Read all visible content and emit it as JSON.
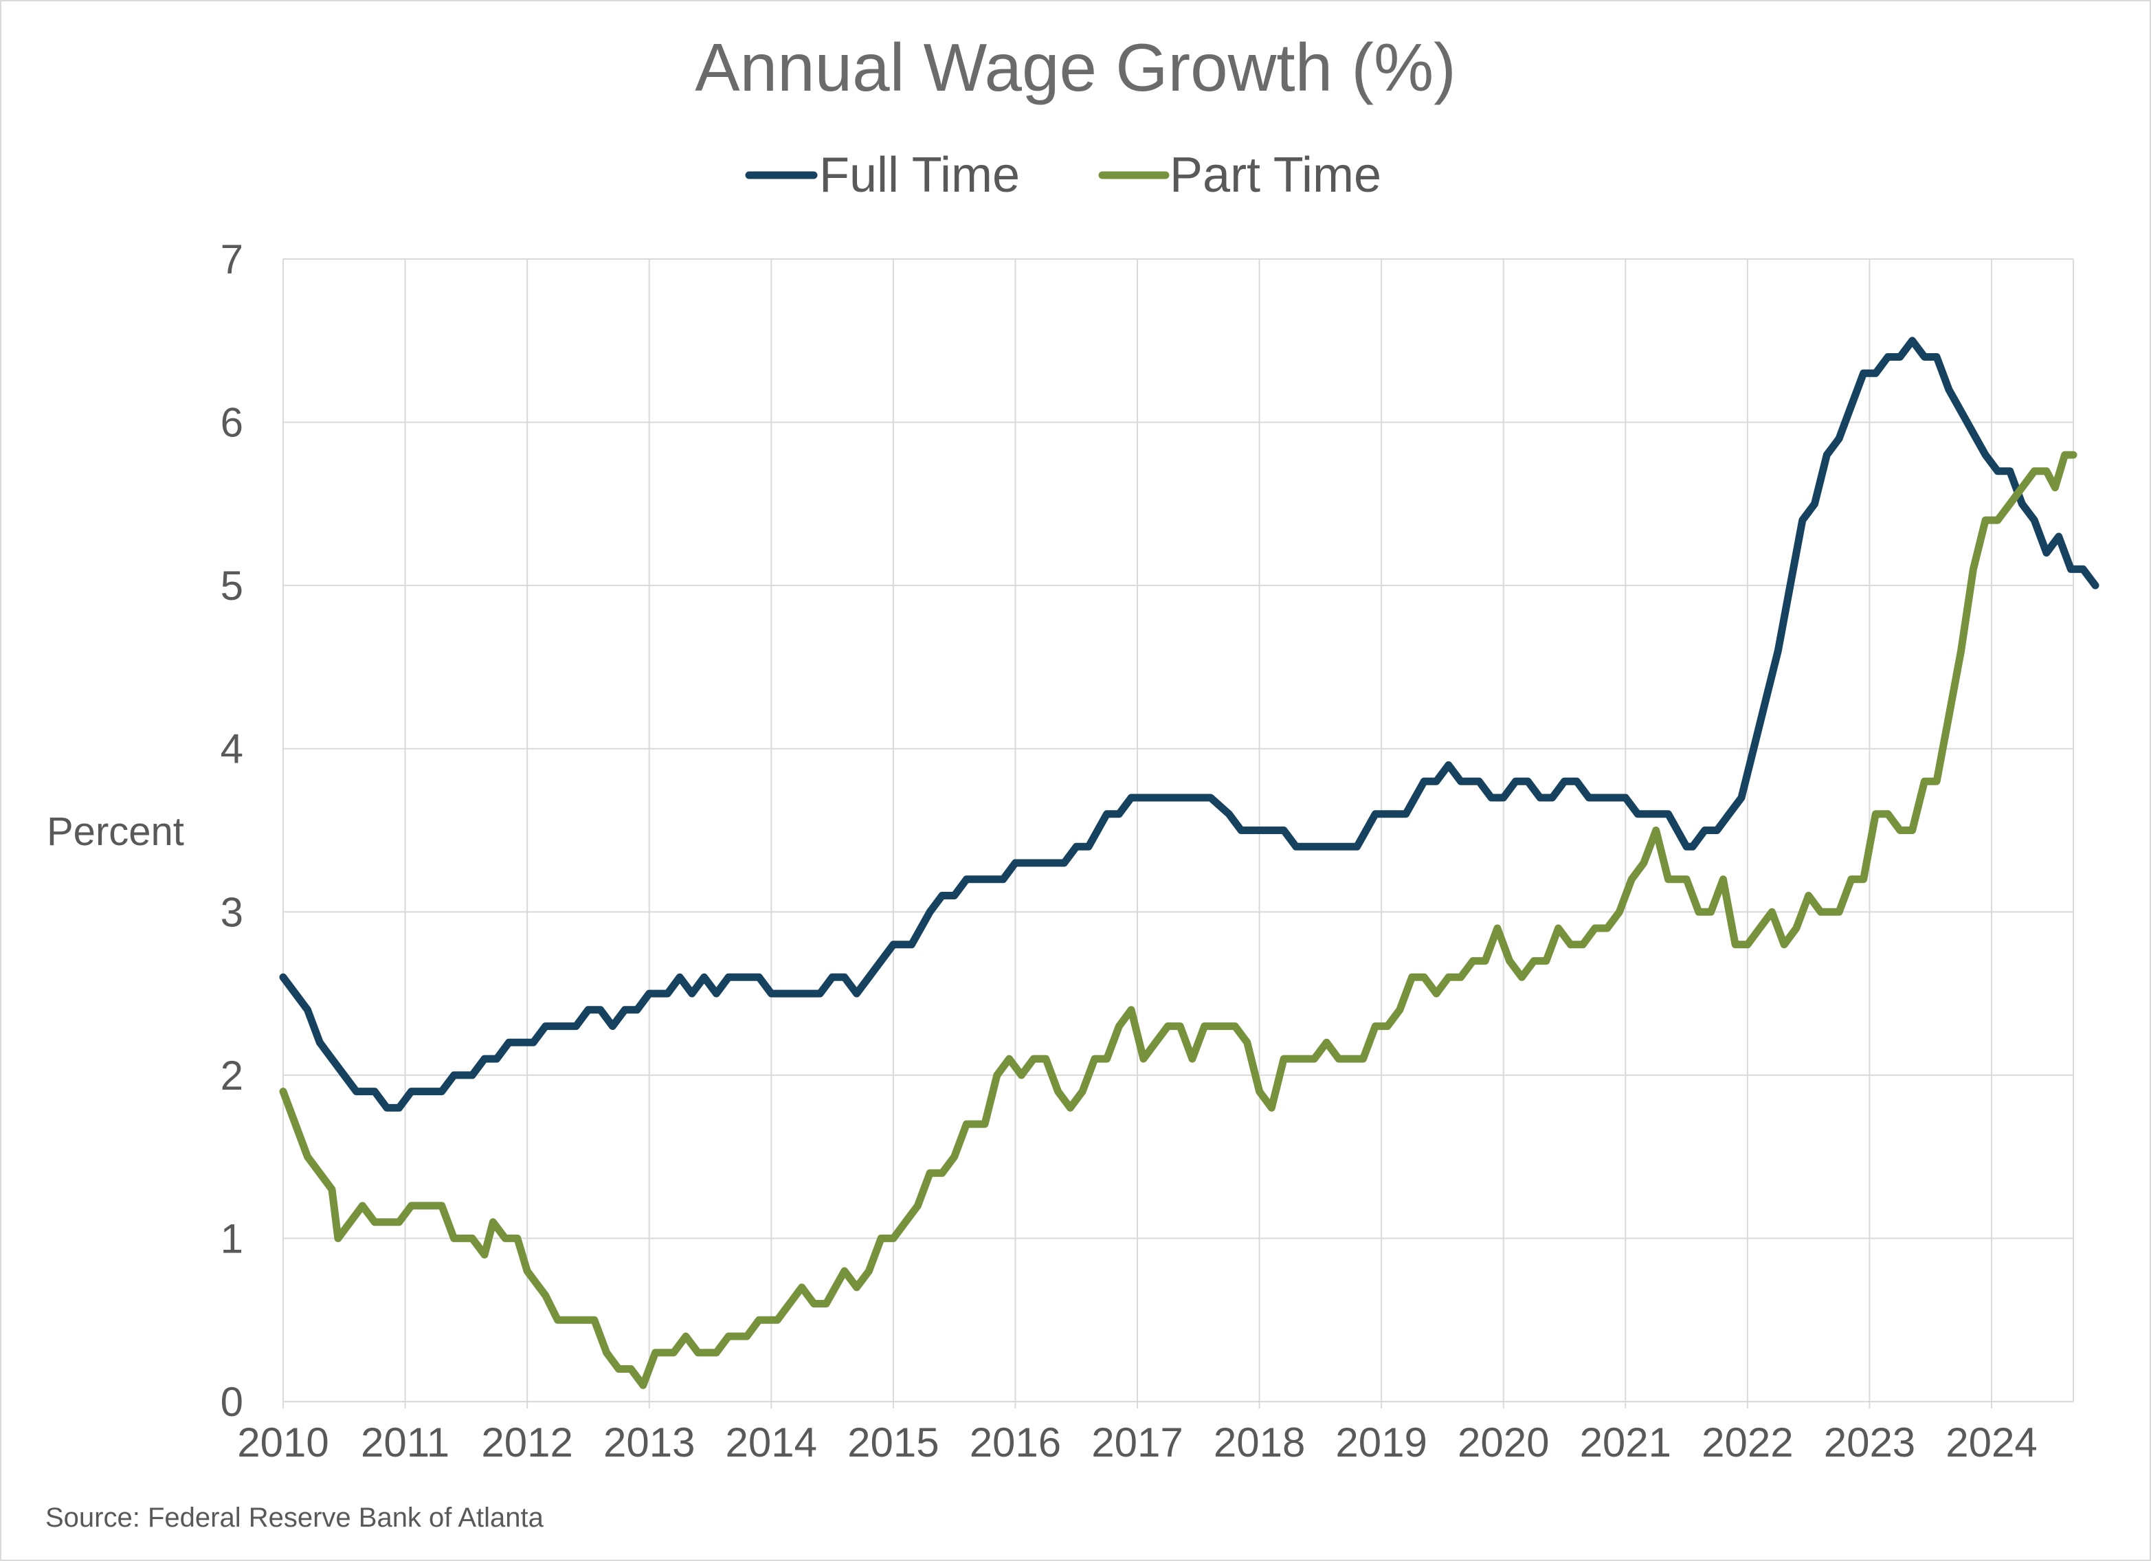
{
  "chart_data": {
    "type": "line",
    "title": "Annual Wage Growth (%)",
    "ylabel": "Percent",
    "xlabel": "",
    "source": "Source: Federal Reserve Bank of Atlanta",
    "xlim": [
      2010,
      2024.67
    ],
    "ylim": [
      0,
      7
    ],
    "yticks": [
      "0",
      "1",
      "2",
      "3",
      "4",
      "5",
      "6",
      "7"
    ],
    "xticks": [
      "2010",
      "2011",
      "2012",
      "2013",
      "2014",
      "2015",
      "2016",
      "2017",
      "2018",
      "2019",
      "2020",
      "2021",
      "2022",
      "2023",
      "2024"
    ],
    "grid": true,
    "legend_position": "top-center",
    "series": [
      {
        "name": "Full Time",
        "color": "#17425f",
        "points": [
          [
            2010.0,
            2.6
          ],
          [
            2010.1,
            2.5
          ],
          [
            2010.2,
            2.4
          ],
          [
            2010.3,
            2.2
          ],
          [
            2010.4,
            2.1
          ],
          [
            2010.5,
            2.0
          ],
          [
            2010.6,
            1.9
          ],
          [
            2010.75,
            1.9
          ],
          [
            2010.85,
            1.8
          ],
          [
            2010.95,
            1.8
          ],
          [
            2011.05,
            1.9
          ],
          [
            2011.3,
            1.9
          ],
          [
            2011.4,
            2.0
          ],
          [
            2011.55,
            2.0
          ],
          [
            2011.65,
            2.1
          ],
          [
            2011.75,
            2.1
          ],
          [
            2011.85,
            2.2
          ],
          [
            2012.05,
            2.2
          ],
          [
            2012.15,
            2.3
          ],
          [
            2012.4,
            2.3
          ],
          [
            2012.5,
            2.4
          ],
          [
            2012.6,
            2.4
          ],
          [
            2012.7,
            2.3
          ],
          [
            2012.8,
            2.4
          ],
          [
            2012.9,
            2.4
          ],
          [
            2013.0,
            2.5
          ],
          [
            2013.15,
            2.5
          ],
          [
            2013.25,
            2.6
          ],
          [
            2013.35,
            2.5
          ],
          [
            2013.45,
            2.6
          ],
          [
            2013.55,
            2.5
          ],
          [
            2013.65,
            2.6
          ],
          [
            2013.9,
            2.6
          ],
          [
            2014.0,
            2.5
          ],
          [
            2014.4,
            2.5
          ],
          [
            2014.5,
            2.6
          ],
          [
            2014.6,
            2.6
          ],
          [
            2014.7,
            2.5
          ],
          [
            2014.8,
            2.6
          ],
          [
            2015.0,
            2.8
          ],
          [
            2015.15,
            2.8
          ],
          [
            2015.3,
            3.0
          ],
          [
            2015.4,
            3.1
          ],
          [
            2015.5,
            3.1
          ],
          [
            2015.6,
            3.2
          ],
          [
            2015.9,
            3.2
          ],
          [
            2016.0,
            3.3
          ],
          [
            2016.4,
            3.3
          ],
          [
            2016.5,
            3.4
          ],
          [
            2016.6,
            3.4
          ],
          [
            2016.75,
            3.6
          ],
          [
            2016.85,
            3.6
          ],
          [
            2016.95,
            3.7
          ],
          [
            2017.6,
            3.7
          ],
          [
            2017.75,
            3.6
          ],
          [
            2017.85,
            3.5
          ],
          [
            2018.2,
            3.5
          ],
          [
            2018.3,
            3.4
          ],
          [
            2018.8,
            3.4
          ],
          [
            2018.95,
            3.6
          ],
          [
            2019.2,
            3.6
          ],
          [
            2019.35,
            3.8
          ],
          [
            2019.45,
            3.8
          ],
          [
            2019.55,
            3.9
          ],
          [
            2019.65,
            3.8
          ],
          [
            2019.8,
            3.8
          ],
          [
            2019.9,
            3.7
          ],
          [
            2020.0,
            3.7
          ],
          [
            2020.1,
            3.8
          ],
          [
            2020.2,
            3.8
          ],
          [
            2020.3,
            3.7
          ],
          [
            2020.4,
            3.7
          ],
          [
            2020.5,
            3.8
          ],
          [
            2020.6,
            3.8
          ],
          [
            2020.7,
            3.7
          ],
          [
            2021.0,
            3.7
          ],
          [
            2021.1,
            3.6
          ],
          [
            2021.35,
            3.6
          ],
          [
            2021.5,
            3.4
          ],
          [
            2021.55,
            3.4
          ],
          [
            2021.65,
            3.5
          ],
          [
            2021.75,
            3.5
          ],
          [
            2021.85,
            3.6
          ],
          [
            2021.95,
            3.7
          ],
          [
            2022.05,
            4.0
          ],
          [
            2022.15,
            4.3
          ],
          [
            2022.25,
            4.6
          ],
          [
            2022.35,
            5.0
          ],
          [
            2022.45,
            5.4
          ],
          [
            2022.55,
            5.5
          ],
          [
            2022.65,
            5.8
          ],
          [
            2022.75,
            5.9
          ],
          [
            2022.85,
            6.1
          ],
          [
            2022.95,
            6.3
          ],
          [
            2023.05,
            6.3
          ],
          [
            2023.15,
            6.4
          ],
          [
            2023.25,
            6.4
          ],
          [
            2023.35,
            6.5
          ],
          [
            2023.45,
            6.4
          ],
          [
            2023.55,
            6.4
          ],
          [
            2023.65,
            6.2
          ],
          [
            2023.8,
            6.0
          ],
          [
            2023.95,
            5.8
          ],
          [
            2024.05,
            5.7
          ],
          [
            2024.15,
            5.7
          ],
          [
            2024.25,
            5.5
          ],
          [
            2024.35,
            5.4
          ],
          [
            2024.45,
            5.2
          ],
          [
            2024.55,
            5.3
          ],
          [
            2024.65,
            5.1
          ],
          [
            2024.75,
            5.1
          ],
          [
            2024.85,
            5.0
          ]
        ]
      },
      {
        "name": "Part Time",
        "color": "#76923c",
        "points": [
          [
            2010.0,
            1.9
          ],
          [
            2010.1,
            1.7
          ],
          [
            2010.2,
            1.5
          ],
          [
            2010.3,
            1.4
          ],
          [
            2010.4,
            1.3
          ],
          [
            2010.45,
            1.0
          ],
          [
            2010.55,
            1.1
          ],
          [
            2010.65,
            1.2
          ],
          [
            2010.75,
            1.1
          ],
          [
            2010.95,
            1.1
          ],
          [
            2011.05,
            1.2
          ],
          [
            2011.3,
            1.2
          ],
          [
            2011.4,
            1.0
          ],
          [
            2011.55,
            1.0
          ],
          [
            2011.65,
            0.9
          ],
          [
            2011.72,
            1.1
          ],
          [
            2011.82,
            1.0
          ],
          [
            2011.92,
            1.0
          ],
          [
            2012.0,
            0.8
          ],
          [
            2012.15,
            0.65
          ],
          [
            2012.25,
            0.5
          ],
          [
            2012.55,
            0.5
          ],
          [
            2012.65,
            0.3
          ],
          [
            2012.75,
            0.2
          ],
          [
            2012.85,
            0.2
          ],
          [
            2012.95,
            0.1
          ],
          [
            2013.05,
            0.3
          ],
          [
            2013.2,
            0.3
          ],
          [
            2013.3,
            0.4
          ],
          [
            2013.4,
            0.3
          ],
          [
            2013.55,
            0.3
          ],
          [
            2013.65,
            0.4
          ],
          [
            2013.8,
            0.4
          ],
          [
            2013.9,
            0.5
          ],
          [
            2014.05,
            0.5
          ],
          [
            2014.15,
            0.6
          ],
          [
            2014.25,
            0.7
          ],
          [
            2014.35,
            0.6
          ],
          [
            2014.45,
            0.6
          ],
          [
            2014.6,
            0.8
          ],
          [
            2014.7,
            0.7
          ],
          [
            2014.8,
            0.8
          ],
          [
            2014.9,
            1.0
          ],
          [
            2015.0,
            1.0
          ],
          [
            2015.1,
            1.1
          ],
          [
            2015.2,
            1.2
          ],
          [
            2015.3,
            1.4
          ],
          [
            2015.4,
            1.4
          ],
          [
            2015.5,
            1.5
          ],
          [
            2015.6,
            1.7
          ],
          [
            2015.75,
            1.7
          ],
          [
            2015.85,
            2.0
          ],
          [
            2015.95,
            2.1
          ],
          [
            2016.05,
            2.0
          ],
          [
            2016.15,
            2.1
          ],
          [
            2016.25,
            2.1
          ],
          [
            2016.35,
            1.9
          ],
          [
            2016.45,
            1.8
          ],
          [
            2016.55,
            1.9
          ],
          [
            2016.65,
            2.1
          ],
          [
            2016.75,
            2.1
          ],
          [
            2016.85,
            2.3
          ],
          [
            2016.95,
            2.4
          ],
          [
            2017.05,
            2.1
          ],
          [
            2017.15,
            2.2
          ],
          [
            2017.25,
            2.3
          ],
          [
            2017.35,
            2.3
          ],
          [
            2017.45,
            2.1
          ],
          [
            2017.55,
            2.3
          ],
          [
            2017.8,
            2.3
          ],
          [
            2017.9,
            2.2
          ],
          [
            2018.0,
            1.9
          ],
          [
            2018.1,
            1.8
          ],
          [
            2018.2,
            2.1
          ],
          [
            2018.45,
            2.1
          ],
          [
            2018.55,
            2.2
          ],
          [
            2018.65,
            2.1
          ],
          [
            2018.85,
            2.1
          ],
          [
            2018.95,
            2.3
          ],
          [
            2019.05,
            2.3
          ],
          [
            2019.15,
            2.4
          ],
          [
            2019.25,
            2.6
          ],
          [
            2019.35,
            2.6
          ],
          [
            2019.45,
            2.5
          ],
          [
            2019.55,
            2.6
          ],
          [
            2019.65,
            2.6
          ],
          [
            2019.75,
            2.7
          ],
          [
            2019.85,
            2.7
          ],
          [
            2019.95,
            2.9
          ],
          [
            2020.05,
            2.7
          ],
          [
            2020.15,
            2.6
          ],
          [
            2020.25,
            2.7
          ],
          [
            2020.35,
            2.7
          ],
          [
            2020.45,
            2.9
          ],
          [
            2020.55,
            2.8
          ],
          [
            2020.65,
            2.8
          ],
          [
            2020.75,
            2.9
          ],
          [
            2020.85,
            2.9
          ],
          [
            2020.95,
            3.0
          ],
          [
            2021.05,
            3.2
          ],
          [
            2021.15,
            3.3
          ],
          [
            2021.25,
            3.5
          ],
          [
            2021.35,
            3.2
          ],
          [
            2021.5,
            3.2
          ],
          [
            2021.6,
            3.0
          ],
          [
            2021.7,
            3.0
          ],
          [
            2021.8,
            3.2
          ],
          [
            2021.9,
            2.8
          ],
          [
            2022.0,
            2.8
          ],
          [
            2022.1,
            2.9
          ],
          [
            2022.2,
            3.0
          ],
          [
            2022.3,
            2.8
          ],
          [
            2022.4,
            2.9
          ],
          [
            2022.5,
            3.1
          ],
          [
            2022.6,
            3.0
          ],
          [
            2022.75,
            3.0
          ],
          [
            2022.85,
            3.2
          ],
          [
            2022.95,
            3.2
          ],
          [
            2023.05,
            3.6
          ],
          [
            2023.15,
            3.6
          ],
          [
            2023.25,
            3.5
          ],
          [
            2023.35,
            3.5
          ],
          [
            2023.45,
            3.8
          ],
          [
            2023.55,
            3.8
          ],
          [
            2023.65,
            4.2
          ],
          [
            2023.75,
            4.6
          ],
          [
            2023.85,
            5.1
          ],
          [
            2023.95,
            5.4
          ],
          [
            2024.05,
            5.4
          ],
          [
            2024.15,
            5.5
          ],
          [
            2024.25,
            5.6
          ],
          [
            2024.35,
            5.7
          ],
          [
            2024.45,
            5.7
          ],
          [
            2024.52,
            5.6
          ],
          [
            2024.6,
            5.8
          ],
          [
            2024.67,
            5.8
          ]
        ]
      }
    ]
  }
}
